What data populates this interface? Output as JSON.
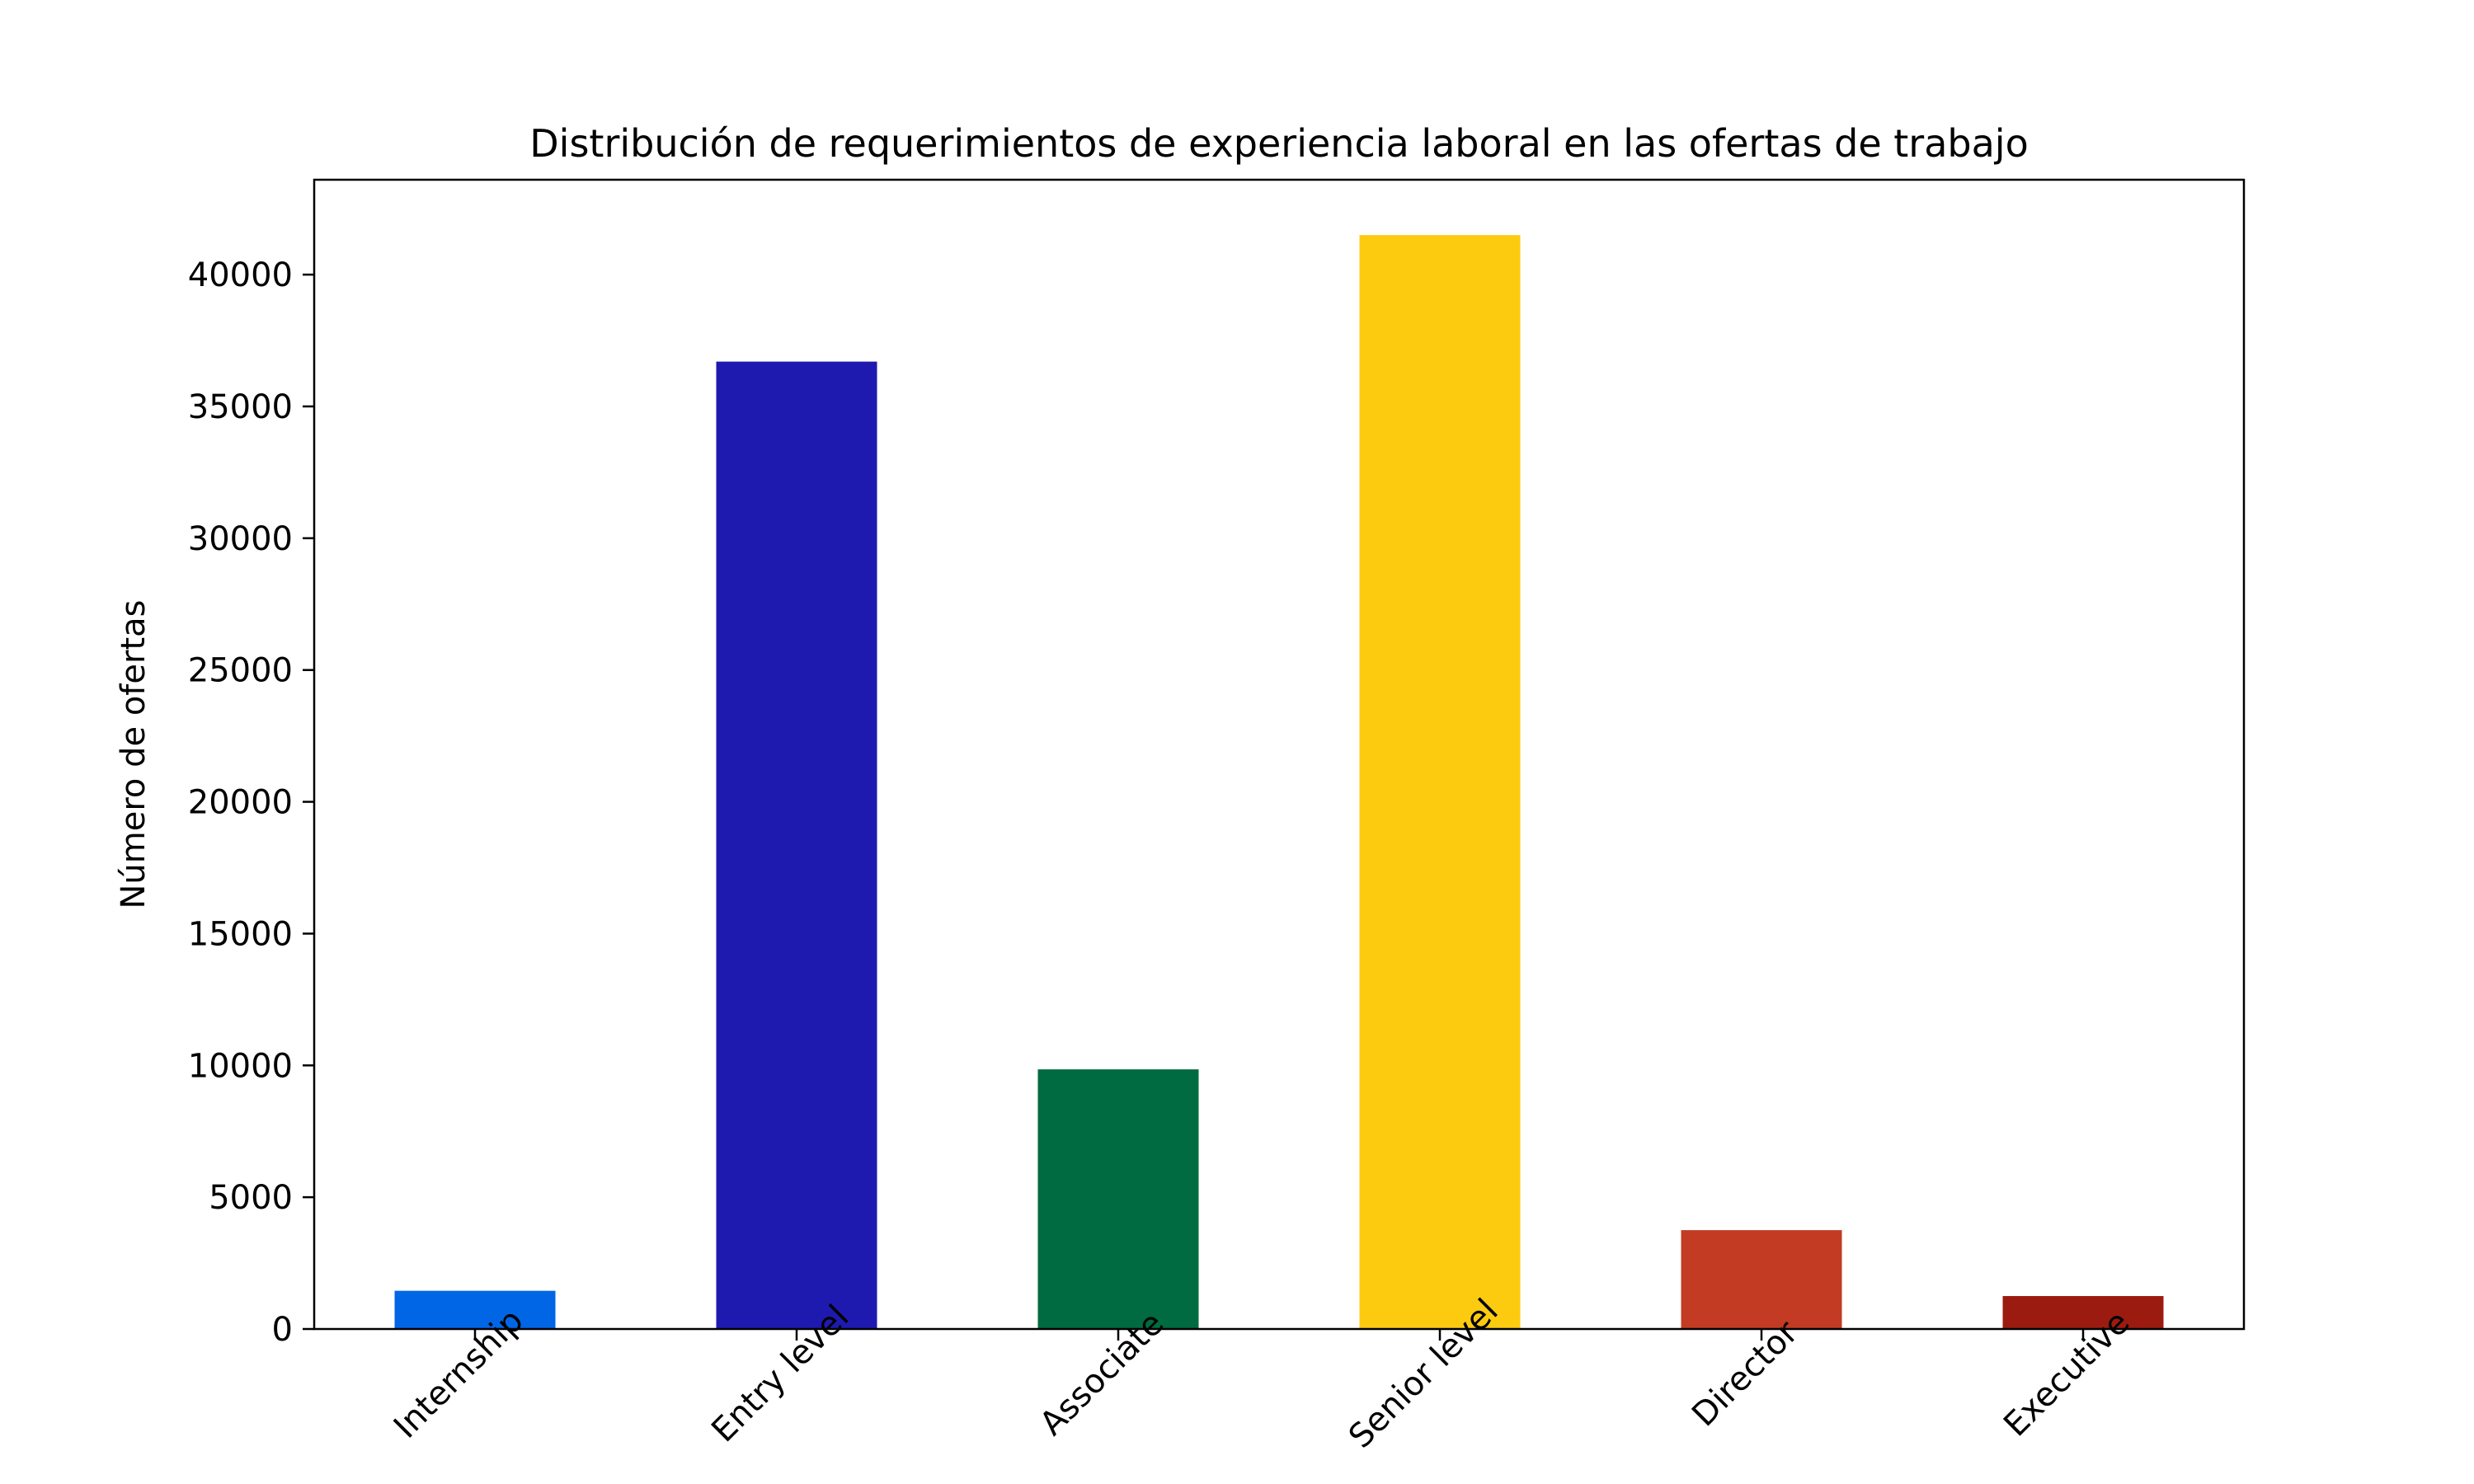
{
  "chart_data": {
    "type": "bar",
    "title": "Distribución de requerimientos de experiencia laboral en las ofertas de trabajo",
    "xlabel": "",
    "ylabel": "Número de ofertas",
    "categories": [
      "Internship",
      "Entry level",
      "Associate",
      "Senior level",
      "Director",
      "Executive"
    ],
    "values": [
      1450,
      36700,
      9850,
      41500,
      3750,
      1250
    ],
    "colors": [
      "#0066E6",
      "#1E1AB0",
      "#006B40",
      "#FCCB10",
      "#C23B22",
      "#9C1B10"
    ],
    "ylim": [
      0,
      43600
    ],
    "yticks": [
      0,
      5000,
      10000,
      15000,
      20000,
      25000,
      30000,
      35000,
      40000
    ],
    "x_tick_rotation": 45,
    "grid": false,
    "legend": "none"
  }
}
